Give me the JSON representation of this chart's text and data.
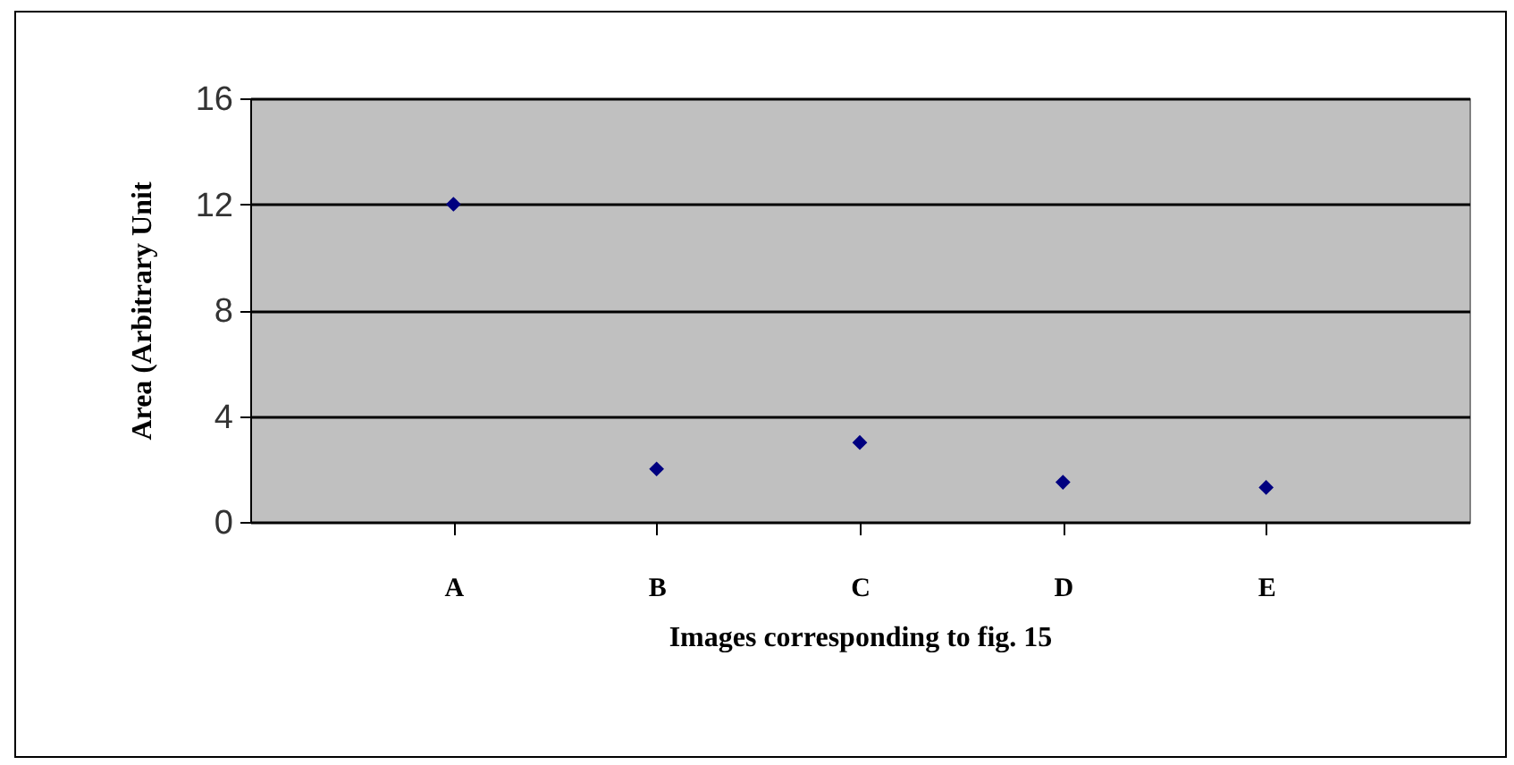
{
  "chart_data": {
    "type": "scatter",
    "xlabel": "Images corresponding to fig. 15",
    "ylabel": "Area (Arbitrary Unit",
    "categories": [
      "A",
      "B",
      "C",
      "D",
      "E"
    ],
    "series": [
      {
        "color": "#000080",
        "values": [
          12,
          2,
          3,
          1.5,
          1.3
        ]
      }
    ],
    "ylim": [
      0,
      16
    ],
    "yticks": [
      0,
      4,
      8,
      12,
      16
    ],
    "grid": "y",
    "marker": "diamond"
  }
}
